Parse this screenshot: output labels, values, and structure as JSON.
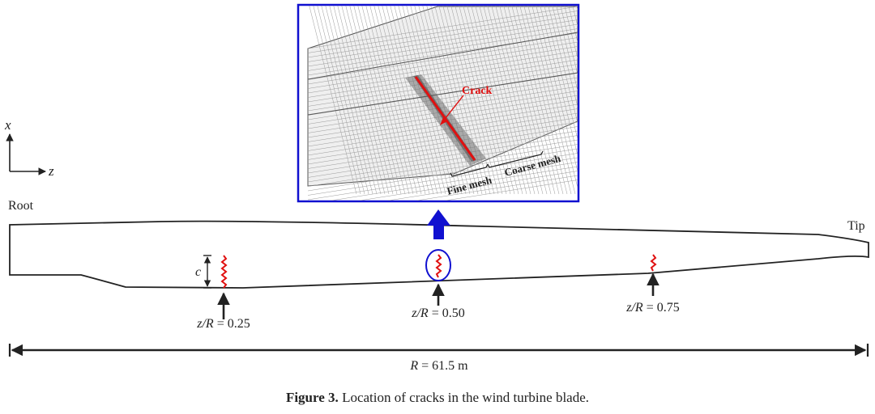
{
  "axes": {
    "x_label": "x",
    "z_label": "z"
  },
  "labels": {
    "root": "Root",
    "tip": "Tip",
    "chord": "c"
  },
  "cracks": [
    {
      "z_over_R": 0.25,
      "prefix": "z/R",
      "suffix": " = 0.25"
    },
    {
      "z_over_R": 0.5,
      "prefix": "z/R",
      "suffix": " = 0.50"
    },
    {
      "z_over_R": 0.75,
      "prefix": "z/R",
      "suffix": " = 0.75"
    }
  ],
  "radius": {
    "symbol": "R",
    "text": " = 61.5 m"
  },
  "inset": {
    "crack_label": "Crack",
    "fine_mesh": "Fine mesh",
    "coarse_mesh": "Coarse mesh"
  },
  "caption": {
    "figure_no": "Figure 3.",
    "text": " Location of cracks in the wind turbine blade."
  },
  "colors": {
    "crack": "#e01010",
    "highlight": "#1010d0",
    "outline": "#222222"
  }
}
